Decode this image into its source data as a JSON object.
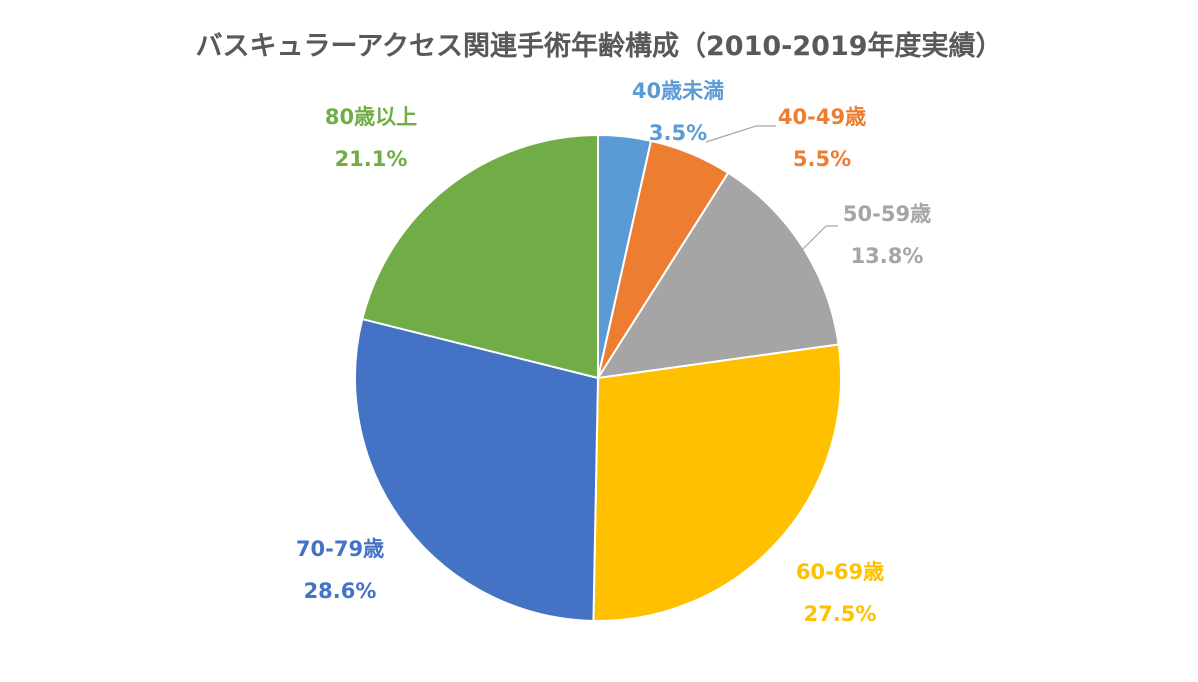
{
  "chart_data": {
    "type": "pie",
    "title": "バスキュラーアクセス関連手術年齢構成（2010-2019年度実績）",
    "slices": [
      {
        "label": "40歳未満",
        "value": 3.5,
        "value_label": "3.5%",
        "color": "#5B9BD5"
      },
      {
        "label": "40-49歳",
        "value": 5.5,
        "value_label": "5.5%",
        "color": "#ED7D31"
      },
      {
        "label": "50-59歳",
        "value": 13.8,
        "value_label": "13.8%",
        "color": "#A5A5A5"
      },
      {
        "label": "60-69歳",
        "value": 27.5,
        "value_label": "27.5%",
        "color": "#FFC000"
      },
      {
        "label": "70-79歳",
        "value": 28.6,
        "value_label": "28.6%",
        "color": "#4472C4"
      },
      {
        "label": "80歳以上",
        "value": 21.1,
        "value_label": "21.1%",
        "color": "#70AD47"
      }
    ],
    "start_angle": "12 o'clock",
    "direction": "clockwise",
    "legend": "none",
    "data_labels": "outside"
  }
}
